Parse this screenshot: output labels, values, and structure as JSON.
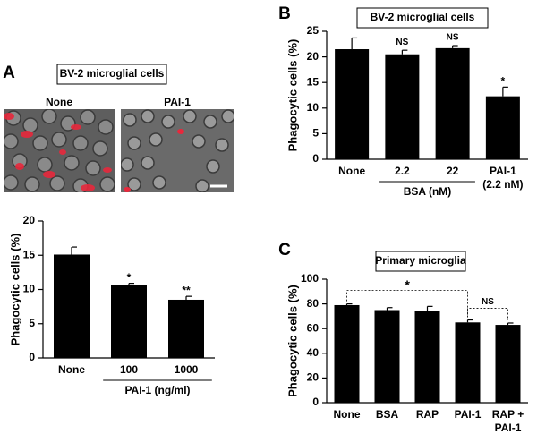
{
  "chart_data": [
    {
      "type": "bar",
      "panel": "A",
      "title": "BV-2 microglial cells",
      "image_labels": [
        "None",
        "PAI-1"
      ],
      "ylabel": "Phagocytic cells (%)",
      "categories": [
        "None",
        "100",
        "1000"
      ],
      "values": [
        15.1,
        10.7,
        8.5
      ],
      "errors": [
        1.1,
        0.2,
        0.5
      ],
      "bar_labels": [
        null,
        "*",
        "**"
      ],
      "groups": [
        {
          "text": "PAI-1 (ng/ml)",
          "from": "100",
          "to": "1000"
        }
      ],
      "color": "#000000",
      "ylim": [
        0,
        20
      ],
      "yticks": [
        0,
        5,
        10,
        15,
        20
      ]
    },
    {
      "type": "bar",
      "panel": "B",
      "title": "BV-2 microglial cells",
      "ylabel": "Phagocytic cells (%)",
      "categories": [
        "None",
        "2.2",
        "22",
        "PAI-1\n(2.2 nM)"
      ],
      "values": [
        21.5,
        20.5,
        21.7,
        12.3
      ],
      "errors": [
        2.2,
        0.8,
        0.5,
        1.8
      ],
      "bar_labels": [
        null,
        "NS",
        "NS",
        "*"
      ],
      "groups": [
        {
          "text": "BSA (nM)",
          "from": "2.2",
          "to": "22"
        }
      ],
      "color": "#000000",
      "ylim": [
        0,
        25
      ],
      "yticks": [
        0,
        5,
        10,
        15,
        20,
        25
      ]
    },
    {
      "type": "bar",
      "panel": "C",
      "title": "Primary microglia",
      "ylabel": "Phagocytic cells (%)",
      "categories": [
        "None",
        "BSA",
        "RAP",
        "PAI-1",
        "RAP +\nPAI-1"
      ],
      "values": [
        79,
        75,
        74,
        65,
        63
      ],
      "errors": [
        1,
        2,
        4,
        2,
        1.5
      ],
      "brackets": [
        {
          "from": "None",
          "to": "PAI-1",
          "label": "*"
        },
        {
          "from": "PAI-1",
          "to": "RAP +\nPAI-1",
          "label": "NS"
        }
      ],
      "color": "#000000",
      "ylim": [
        0,
        100
      ],
      "yticks": [
        0,
        20,
        40,
        60,
        80,
        100
      ]
    }
  ]
}
